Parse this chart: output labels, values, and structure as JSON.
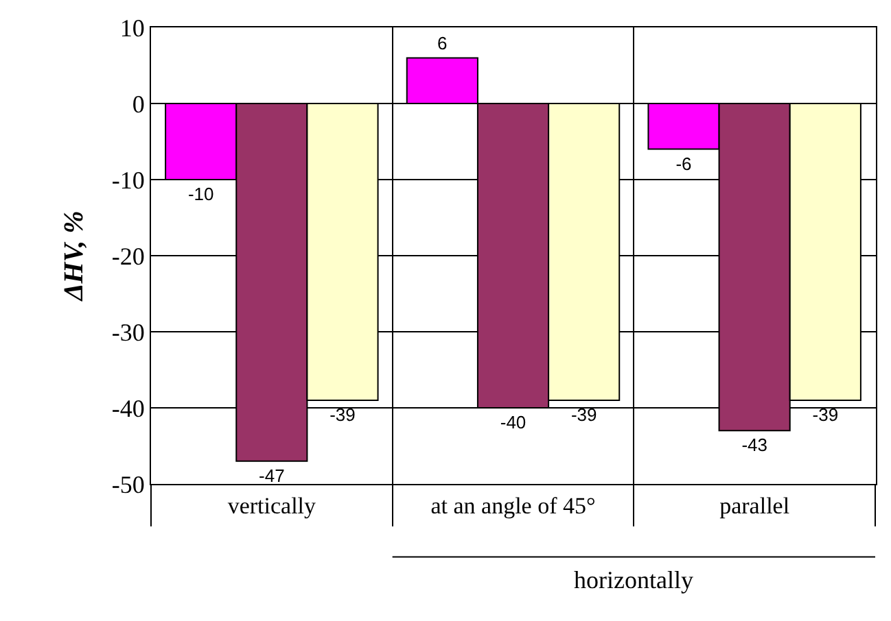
{
  "chart_data": {
    "type": "bar",
    "ylabel": "ΔHV, %",
    "categories": [
      "vertically",
      "at an angle of 45°",
      "parallel"
    ],
    "series": [
      {
        "color": "#ff00ff",
        "values": [
          -10,
          6,
          -6
        ]
      },
      {
        "color": "#993366",
        "values": [
          -47,
          -40,
          -43
        ]
      },
      {
        "color": "#ffffcc",
        "values": [
          -39,
          -39,
          -39
        ]
      }
    ],
    "ylim": [
      -50,
      10
    ],
    "yticks": [
      -50,
      -40,
      -30,
      -20,
      -10,
      0,
      10
    ],
    "grid": true,
    "data_labels": true,
    "legend": false,
    "annotations": [
      "horizontally"
    ]
  }
}
